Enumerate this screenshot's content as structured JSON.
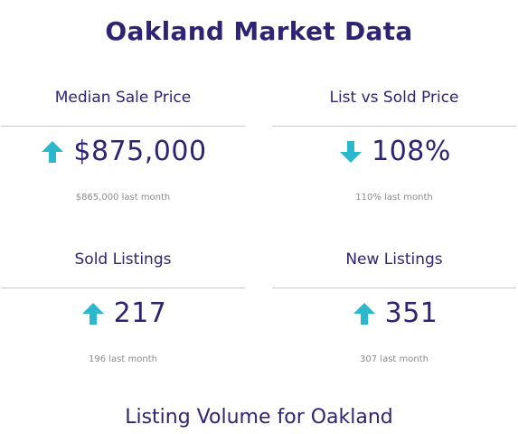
{
  "title": "Oakland Market Data",
  "accent_color": "#2bb7cc",
  "text_color": "#2d2474",
  "cards": [
    {
      "label": "Median Sale Price",
      "value": "$875,000",
      "trend": "up",
      "trend_icon": "arrow-up-icon",
      "last_month": "$865,000 last month"
    },
    {
      "label": "List vs Sold Price",
      "value": "108%",
      "trend": "down",
      "trend_icon": "arrow-down-icon",
      "last_month": "110% last month"
    },
    {
      "label": "Sold Listings",
      "value": "217",
      "trend": "up",
      "trend_icon": "arrow-up-icon",
      "last_month": "196 last month"
    },
    {
      "label": "New Listings",
      "value": "351",
      "trend": "up",
      "trend_icon": "arrow-up-icon",
      "last_month": "307 last month"
    }
  ],
  "section_title": "Listing Volume for Oakland"
}
